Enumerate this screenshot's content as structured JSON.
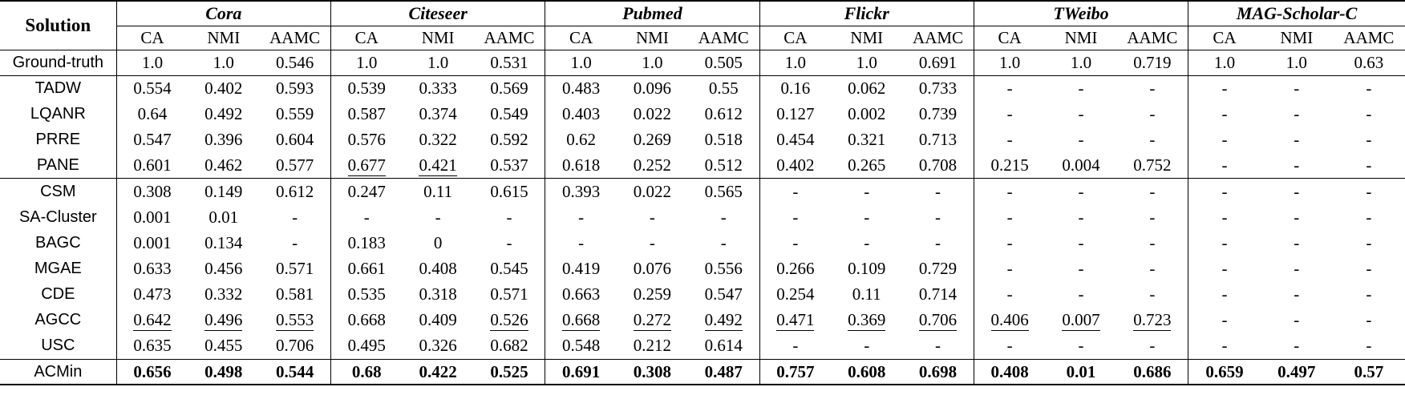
{
  "colors": {
    "text": "#000000",
    "background": "#ffffff",
    "rule": "#000000"
  },
  "table": {
    "row_header_label": "Solution",
    "datasets": [
      "Cora",
      "Citeseer",
      "Pubmed",
      "Flickr",
      "TWeibo",
      "MAG-Scholar-C"
    ],
    "metrics": [
      "CA",
      "NMI",
      "AAMC"
    ],
    "rows": [
      {
        "label": "Ground-truth",
        "section_start": false,
        "bold": false,
        "underline": [],
        "values": [
          "1.0",
          "1.0",
          "0.546",
          "1.0",
          "1.0",
          "0.531",
          "1.0",
          "1.0",
          "0.505",
          "1.0",
          "1.0",
          "0.691",
          "1.0",
          "1.0",
          "0.719",
          "1.0",
          "1.0",
          "0.63"
        ]
      },
      {
        "label": "TADW",
        "section_start": true,
        "bold": false,
        "underline": [],
        "values": [
          "0.554",
          "0.402",
          "0.593",
          "0.539",
          "0.333",
          "0.569",
          "0.483",
          "0.096",
          "0.55",
          "0.16",
          "0.062",
          "0.733",
          "-",
          "-",
          "-",
          "-",
          "-",
          "-"
        ]
      },
      {
        "label": "LQANR",
        "section_start": false,
        "bold": false,
        "underline": [],
        "values": [
          "0.64",
          "0.492",
          "0.559",
          "0.587",
          "0.374",
          "0.549",
          "0.403",
          "0.022",
          "0.612",
          "0.127",
          "0.002",
          "0.739",
          "-",
          "-",
          "-",
          "-",
          "-",
          "-"
        ]
      },
      {
        "label": "PRRE",
        "section_start": false,
        "bold": false,
        "underline": [],
        "values": [
          "0.547",
          "0.396",
          "0.604",
          "0.576",
          "0.322",
          "0.592",
          "0.62",
          "0.269",
          "0.518",
          "0.454",
          "0.321",
          "0.713",
          "-",
          "-",
          "-",
          "-",
          "-",
          "-"
        ]
      },
      {
        "label": "PANE",
        "section_start": false,
        "bold": false,
        "underline": [
          3,
          4
        ],
        "values": [
          "0.601",
          "0.462",
          "0.577",
          "0.677",
          "0.421",
          "0.537",
          "0.618",
          "0.252",
          "0.512",
          "0.402",
          "0.265",
          "0.708",
          "0.215",
          "0.004",
          "0.752",
          "-",
          "-",
          "-"
        ]
      },
      {
        "label": "CSM",
        "section_start": true,
        "bold": false,
        "underline": [],
        "values": [
          "0.308",
          "0.149",
          "0.612",
          "0.247",
          "0.11",
          "0.615",
          "0.393",
          "0.022",
          "0.565",
          "-",
          "-",
          "-",
          "-",
          "-",
          "-",
          "-",
          "-",
          "-"
        ]
      },
      {
        "label": "SA-Cluster",
        "section_start": false,
        "bold": false,
        "underline": [],
        "values": [
          "0.001",
          "0.01",
          "-",
          "-",
          "-",
          "-",
          "-",
          "-",
          "-",
          "-",
          "-",
          "-",
          "-",
          "-",
          "-",
          "-",
          "-",
          "-"
        ]
      },
      {
        "label": "BAGC",
        "section_start": false,
        "bold": false,
        "underline": [],
        "values": [
          "0.001",
          "0.134",
          "-",
          "0.183",
          "0",
          "-",
          "-",
          "-",
          "-",
          "-",
          "-",
          "-",
          "-",
          "-",
          "-",
          "-",
          "-",
          "-"
        ]
      },
      {
        "label": "MGAE",
        "section_start": false,
        "bold": false,
        "underline": [],
        "values": [
          "0.633",
          "0.456",
          "0.571",
          "0.661",
          "0.408",
          "0.545",
          "0.419",
          "0.076",
          "0.556",
          "0.266",
          "0.109",
          "0.729",
          "-",
          "-",
          "-",
          "-",
          "-",
          "-"
        ]
      },
      {
        "label": "CDE",
        "section_start": false,
        "bold": false,
        "underline": [],
        "values": [
          "0.473",
          "0.332",
          "0.581",
          "0.535",
          "0.318",
          "0.571",
          "0.663",
          "0.259",
          "0.547",
          "0.254",
          "0.11",
          "0.714",
          "-",
          "-",
          "-",
          "-",
          "-",
          "-"
        ]
      },
      {
        "label": "AGCC",
        "section_start": false,
        "bold": false,
        "underline": [
          0,
          1,
          2,
          5,
          6,
          7,
          8,
          9,
          10,
          11,
          12,
          13,
          14
        ],
        "values": [
          "0.642",
          "0.496",
          "0.553",
          "0.668",
          "0.409",
          "0.526",
          "0.668",
          "0.272",
          "0.492",
          "0.471",
          "0.369",
          "0.706",
          "0.406",
          "0.007",
          "0.723",
          "-",
          "-",
          "-"
        ]
      },
      {
        "label": "USC",
        "section_start": false,
        "bold": false,
        "underline": [],
        "values": [
          "0.635",
          "0.455",
          "0.706",
          "0.495",
          "0.326",
          "0.682",
          "0.548",
          "0.212",
          "0.614",
          "-",
          "-",
          "-",
          "-",
          "-",
          "-",
          "-",
          "-",
          "-"
        ]
      },
      {
        "label": "ACMin",
        "section_start": true,
        "bold": true,
        "underline": [],
        "values": [
          "0.656",
          "0.498",
          "0.544",
          "0.68",
          "0.422",
          "0.525",
          "0.691",
          "0.308",
          "0.487",
          "0.757",
          "0.608",
          "0.698",
          "0.408",
          "0.01",
          "0.686",
          "0.659",
          "0.497",
          "0.57"
        ]
      }
    ]
  }
}
